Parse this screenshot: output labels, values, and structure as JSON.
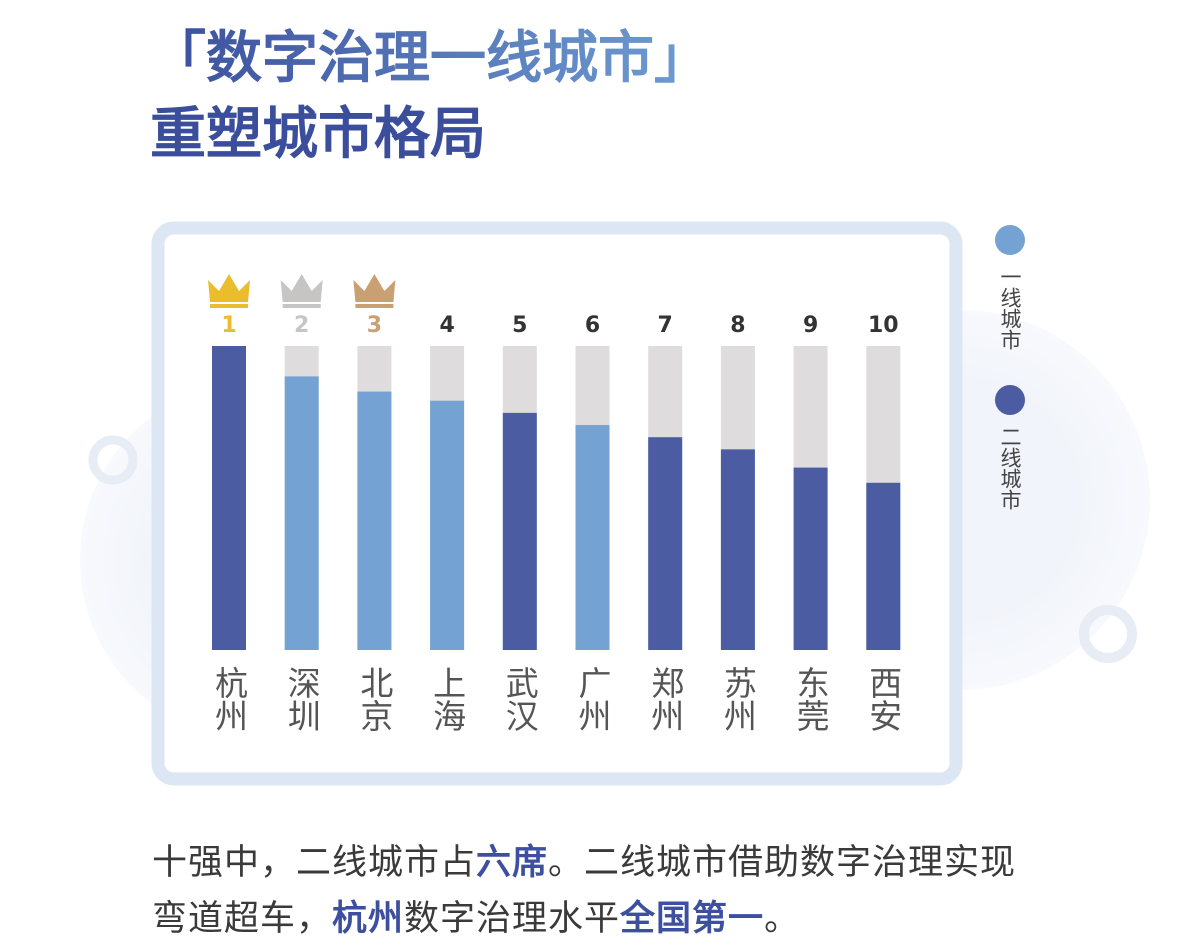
{
  "chart_data": {
    "type": "bar",
    "title": "「数字治理一线城市」",
    "subtitle": "重塑城市格局",
    "categories": [
      "杭州",
      "深圳",
      "北京",
      "上海",
      "武汉",
      "广州",
      "郑州",
      "苏州",
      "东莞",
      "西安"
    ],
    "ranks": [
      1,
      2,
      3,
      4,
      5,
      6,
      7,
      8,
      9,
      10
    ],
    "medal_colors": [
      "#e9bd2c",
      "#c7c4c4",
      "#c9a074"
    ],
    "track_color": "#dedcdc",
    "series": [
      {
        "name": "一线城市",
        "color": "#74a2d2",
        "values": [
          null,
          90,
          85,
          82,
          null,
          74,
          null,
          null,
          null,
          null
        ]
      },
      {
        "name": "二线城市",
        "color": "#4b5ca2",
        "values": [
          100,
          null,
          null,
          null,
          78,
          null,
          70,
          66,
          60,
          55
        ]
      }
    ],
    "ylim": [
      0,
      100
    ],
    "caption": [
      {
        "text": "十强中，二线城市占",
        "bold": false
      },
      {
        "text": "六席",
        "bold": true
      },
      {
        "text": "。二线城市借助数字治理实现弯道超车，",
        "bold": false
      },
      {
        "text": "杭州",
        "bold": true
      },
      {
        "text": "数字治理水平",
        "bold": false
      },
      {
        "text": "全国第一",
        "bold": true
      },
      {
        "text": "。",
        "bold": false
      }
    ]
  }
}
